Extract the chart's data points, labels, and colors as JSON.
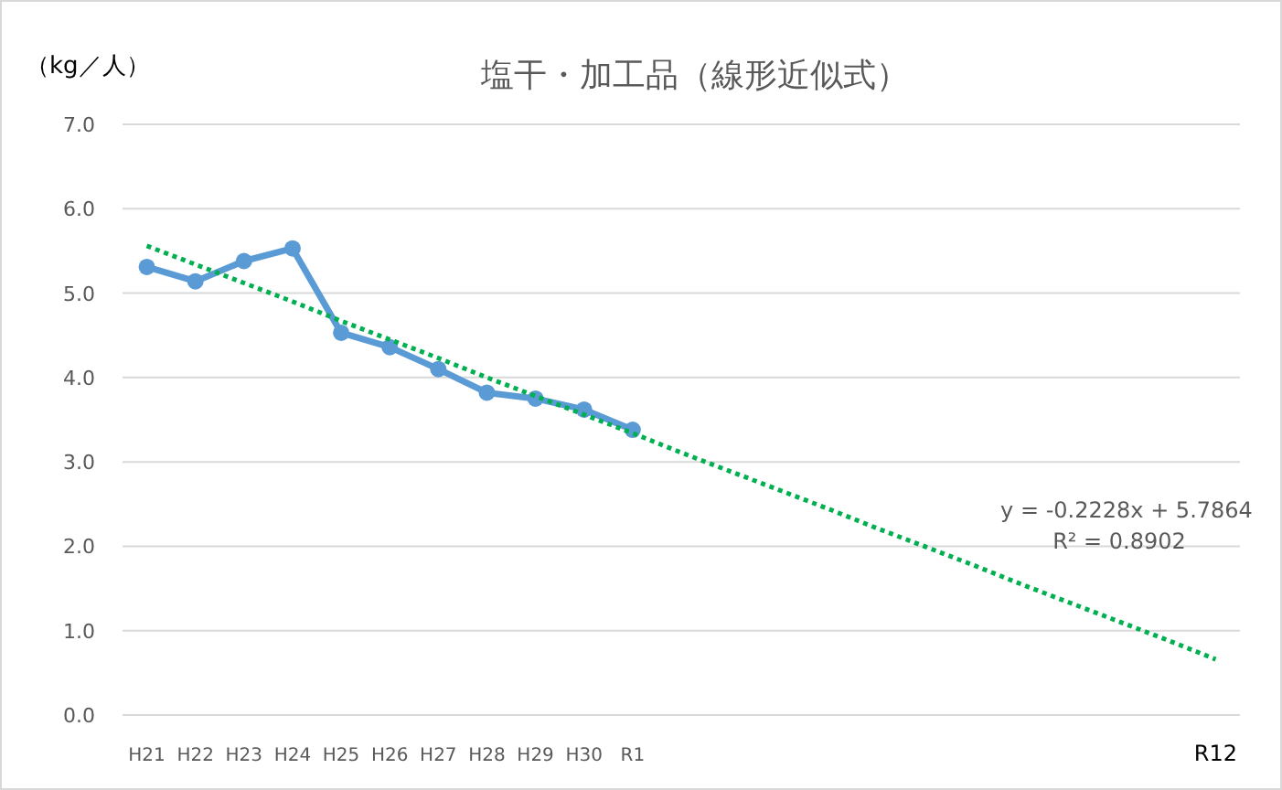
{
  "chart_data": {
    "type": "line",
    "title": "塩干・加工品（線形近似式）",
    "ylabel": "（kg／人）",
    "categories": [
      "H21",
      "H22",
      "H23",
      "H24",
      "H25",
      "H26",
      "H27",
      "H28",
      "H29",
      "H30",
      "R1",
      null,
      null,
      null,
      null,
      null,
      null,
      null,
      null,
      null,
      null,
      null,
      "R12"
    ],
    "series": [
      {
        "color": "#5b9bd5",
        "marker": "circle",
        "line_style": "solid",
        "values": [
          5.31,
          5.14,
          5.38,
          5.53,
          4.53,
          4.36,
          4.1,
          3.82,
          3.75,
          3.62,
          3.38,
          null,
          null,
          null,
          null,
          null,
          null,
          null,
          null,
          null,
          null,
          null,
          null
        ]
      },
      {
        "type": "line",
        "color": "#00b050",
        "marker": "none",
        "line_style": "dotted",
        "values": [
          5.56,
          5.34,
          5.12,
          4.9,
          4.67,
          4.45,
          4.23,
          4.0,
          3.78,
          3.56,
          3.34,
          3.11,
          2.89,
          2.67,
          2.45,
          2.22,
          2.0,
          1.78,
          1.55,
          1.33,
          1.11,
          0.89,
          0.66
        ]
      }
    ],
    "annotations": [
      "y = -0.2228x + 5.7864",
      "R² = 0.8902"
    ],
    "ylim": [
      0,
      7
    ],
    "yticks": [
      {
        "value": 0,
        "label": "0.0"
      },
      {
        "value": 1,
        "label": "1.0"
      },
      {
        "value": 2,
        "label": "2.0"
      },
      {
        "value": 3,
        "label": "3.0"
      },
      {
        "value": 4,
        "label": "4.0"
      },
      {
        "value": 5,
        "label": "5.0"
      },
      {
        "value": 6,
        "label": "6.0"
      },
      {
        "value": 7,
        "label": "7.0"
      }
    ],
    "grid": "y"
  }
}
